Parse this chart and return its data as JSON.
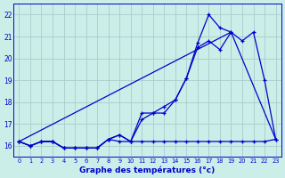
{
  "title": "Graphe des températures (°c)",
  "background_color": "#cceee8",
  "grid_color": "#aacccc",
  "line_color": "#0000cc",
  "ylim": [
    15.5,
    22.5
  ],
  "xlim": [
    -0.5,
    23.5
  ],
  "yticks": [
    16,
    17,
    18,
    19,
    20,
    21,
    22
  ],
  "curve_flat": {
    "x": [
      0,
      1,
      2,
      3,
      4,
      5,
      6,
      7,
      8,
      9,
      10,
      11,
      12,
      13,
      14,
      15,
      16,
      17,
      18,
      19,
      20,
      21,
      22,
      23
    ],
    "y": [
      16.2,
      16.0,
      16.2,
      16.2,
      15.9,
      15.9,
      15.9,
      15.9,
      16.3,
      16.2,
      16.2,
      16.2,
      16.2,
      16.2,
      16.2,
      16.2,
      16.2,
      16.2,
      16.2,
      16.2,
      16.2,
      16.2,
      16.2,
      16.3
    ],
    "has_markers": true
  },
  "curve_wavy": {
    "x": [
      0,
      1,
      2,
      3,
      4,
      5,
      6,
      7,
      8,
      9,
      10,
      11,
      12,
      13,
      14,
      15,
      16,
      17,
      18,
      19,
      20,
      21,
      22,
      23
    ],
    "y": [
      16.2,
      16.0,
      16.2,
      16.2,
      15.9,
      15.9,
      15.9,
      15.9,
      16.3,
      16.5,
      16.2,
      17.5,
      17.5,
      17.8,
      18.1,
      19.1,
      20.7,
      22.0,
      21.4,
      21.2,
      null,
      null,
      null,
      null
    ],
    "has_markers": true
  },
  "curve_smooth": {
    "x": [
      0,
      1,
      2,
      3,
      4,
      5,
      6,
      7,
      8,
      9,
      10,
      11,
      12,
      13,
      14,
      15,
      16,
      17,
      18,
      19,
      20,
      21,
      22,
      23
    ],
    "y": [
      16.2,
      16.0,
      16.2,
      16.2,
      15.9,
      15.9,
      15.9,
      15.9,
      16.3,
      16.5,
      16.2,
      17.2,
      17.5,
      17.5,
      18.1,
      19.1,
      20.5,
      20.8,
      20.4,
      21.2,
      20.8,
      21.2,
      19.0,
      16.3
    ],
    "has_markers": true
  },
  "curve_diag": {
    "x": [
      0,
      19,
      23
    ],
    "y": [
      16.2,
      21.2,
      16.3
    ],
    "has_markers": false
  }
}
